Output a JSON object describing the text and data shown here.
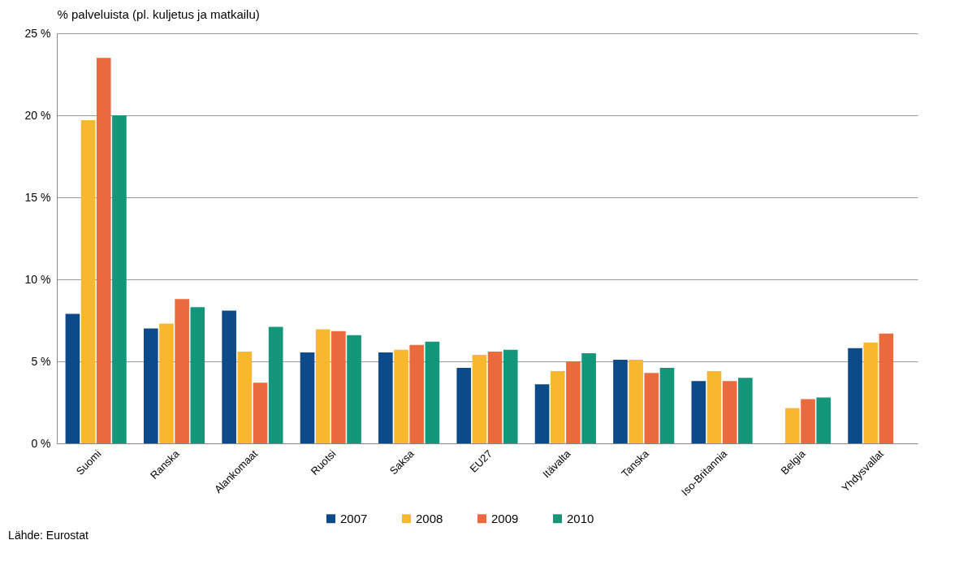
{
  "chart_data": {
    "type": "bar",
    "ylabel": "% palveluista (pl. kuljetus ja matkailu)",
    "categories": [
      "Suomi",
      "Ranska",
      "Alankomaat",
      "Ruotsi",
      "Saksa",
      "EU27",
      "Itävalta",
      "Tanska",
      "Iso-Britannia",
      "Belgia",
      "Yhdysvallat"
    ],
    "series": [
      {
        "name": "2007",
        "color": "#0d4a8a",
        "values": [
          7.9,
          7.0,
          8.1,
          5.55,
          5.55,
          4.6,
          3.6,
          5.1,
          3.8,
          null,
          5.8
        ]
      },
      {
        "name": "2008",
        "color": "#f7b82f",
        "values": [
          19.7,
          7.3,
          5.6,
          6.95,
          5.7,
          5.4,
          4.4,
          5.1,
          4.4,
          2.15,
          6.15
        ]
      },
      {
        "name": "2009",
        "color": "#ea6a3d",
        "values": [
          23.5,
          8.8,
          3.7,
          6.85,
          6.0,
          5.6,
          5.0,
          4.3,
          3.8,
          2.7,
          6.7
        ]
      },
      {
        "name": "2010",
        "color": "#13967a",
        "values": [
          20.0,
          8.3,
          7.1,
          6.6,
          6.2,
          5.7,
          5.5,
          4.6,
          4.0,
          2.8,
          null
        ]
      }
    ],
    "ylim": [
      0,
      25
    ],
    "yticks": [
      {
        "value": 0,
        "label": "0 %"
      },
      {
        "value": 5,
        "label": "5 %"
      },
      {
        "value": 10,
        "label": "10 %"
      },
      {
        "value": 15,
        "label": "15 %"
      },
      {
        "value": 20,
        "label": "20 %"
      },
      {
        "value": 25,
        "label": "25 %"
      }
    ],
    "grid": "y",
    "legend": "bottom",
    "annotations": [
      "Lähde: Eurostat"
    ]
  }
}
